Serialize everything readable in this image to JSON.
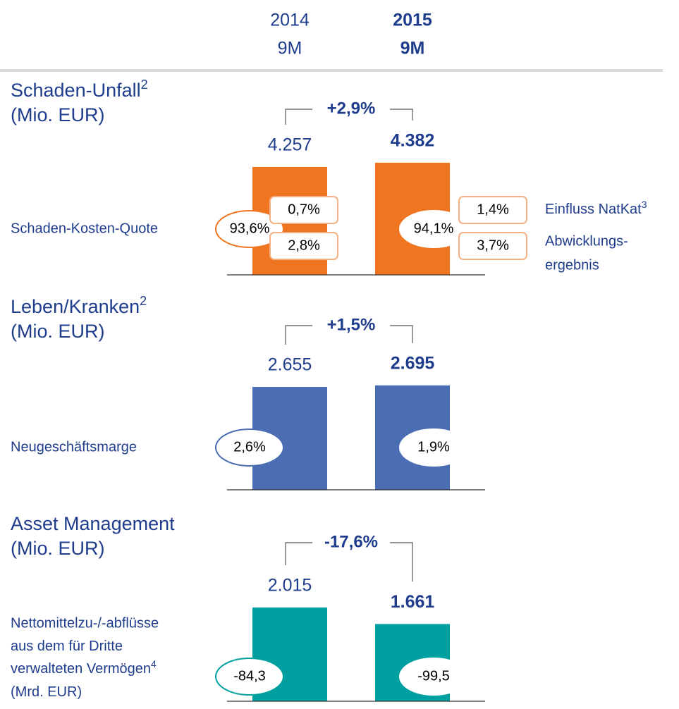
{
  "header": {
    "years": [
      "2014",
      "2015"
    ],
    "periods": [
      "9M",
      "9M"
    ]
  },
  "chart_data": [
    {
      "type": "bar",
      "title": "Schaden-Unfall",
      "title_sup": "2",
      "unit": "(Mio. EUR)",
      "change": "+2,9%",
      "values": [
        4257,
        4382
      ],
      "value_labels": [
        "4.257",
        "4.382"
      ],
      "ylim": [
        1100,
        4400
      ],
      "color": "#f07520",
      "outline": "#f4b183",
      "metric": {
        "label_lines": [
          "Schaden-Kosten-Quote"
        ],
        "values": [
          93.6,
          94.1
        ],
        "value_labels": [
          "93,6%",
          "94,1%"
        ]
      },
      "details": [
        {
          "label_lines": [
            {
              "text": "Einfluss NatKat",
              "sup": "3"
            }
          ],
          "values": [
            0.7,
            1.4
          ],
          "value_labels": [
            "0,7%",
            "1,4%"
          ]
        },
        {
          "label_lines": [
            "Abwicklungs-",
            "ergebnis"
          ],
          "values": [
            2.8,
            3.7
          ],
          "value_labels": [
            "2,8%",
            "3,7%"
          ]
        }
      ]
    },
    {
      "type": "bar",
      "title": "Leben/Kranken",
      "title_sup": "2",
      "unit": "(Mio. EUR)",
      "change": "+1,5%",
      "values": [
        2655,
        2695
      ],
      "value_labels": [
        "2.655",
        "2.695"
      ],
      "ylim": [
        0,
        2910
      ],
      "color": "#4a6db4",
      "metric": {
        "label_lines": [
          "Neugeschäftsmarge"
        ],
        "values": [
          2.6,
          1.9
        ],
        "value_labels": [
          "2,6%",
          "1,9%"
        ]
      }
    },
    {
      "type": "bar",
      "title": "Asset Management",
      "unit": "(Mio. EUR)",
      "change": "-17,6%",
      "values": [
        2015,
        1661
      ],
      "value_labels": [
        "2.015",
        "1.661"
      ],
      "ylim": [
        0,
        2425
      ],
      "color": "#00a0a0",
      "metric": {
        "label_lines": [
          "Nettomittelzu-/-abflüsse",
          "aus dem für Dritte",
          {
            "text": "verwalteten Vermögen",
            "sup": "4"
          },
          "(Mrd. EUR)"
        ],
        "values": [
          -84.3,
          -99.5
        ],
        "value_labels": [
          "-84,3",
          "-99,5"
        ]
      }
    }
  ]
}
